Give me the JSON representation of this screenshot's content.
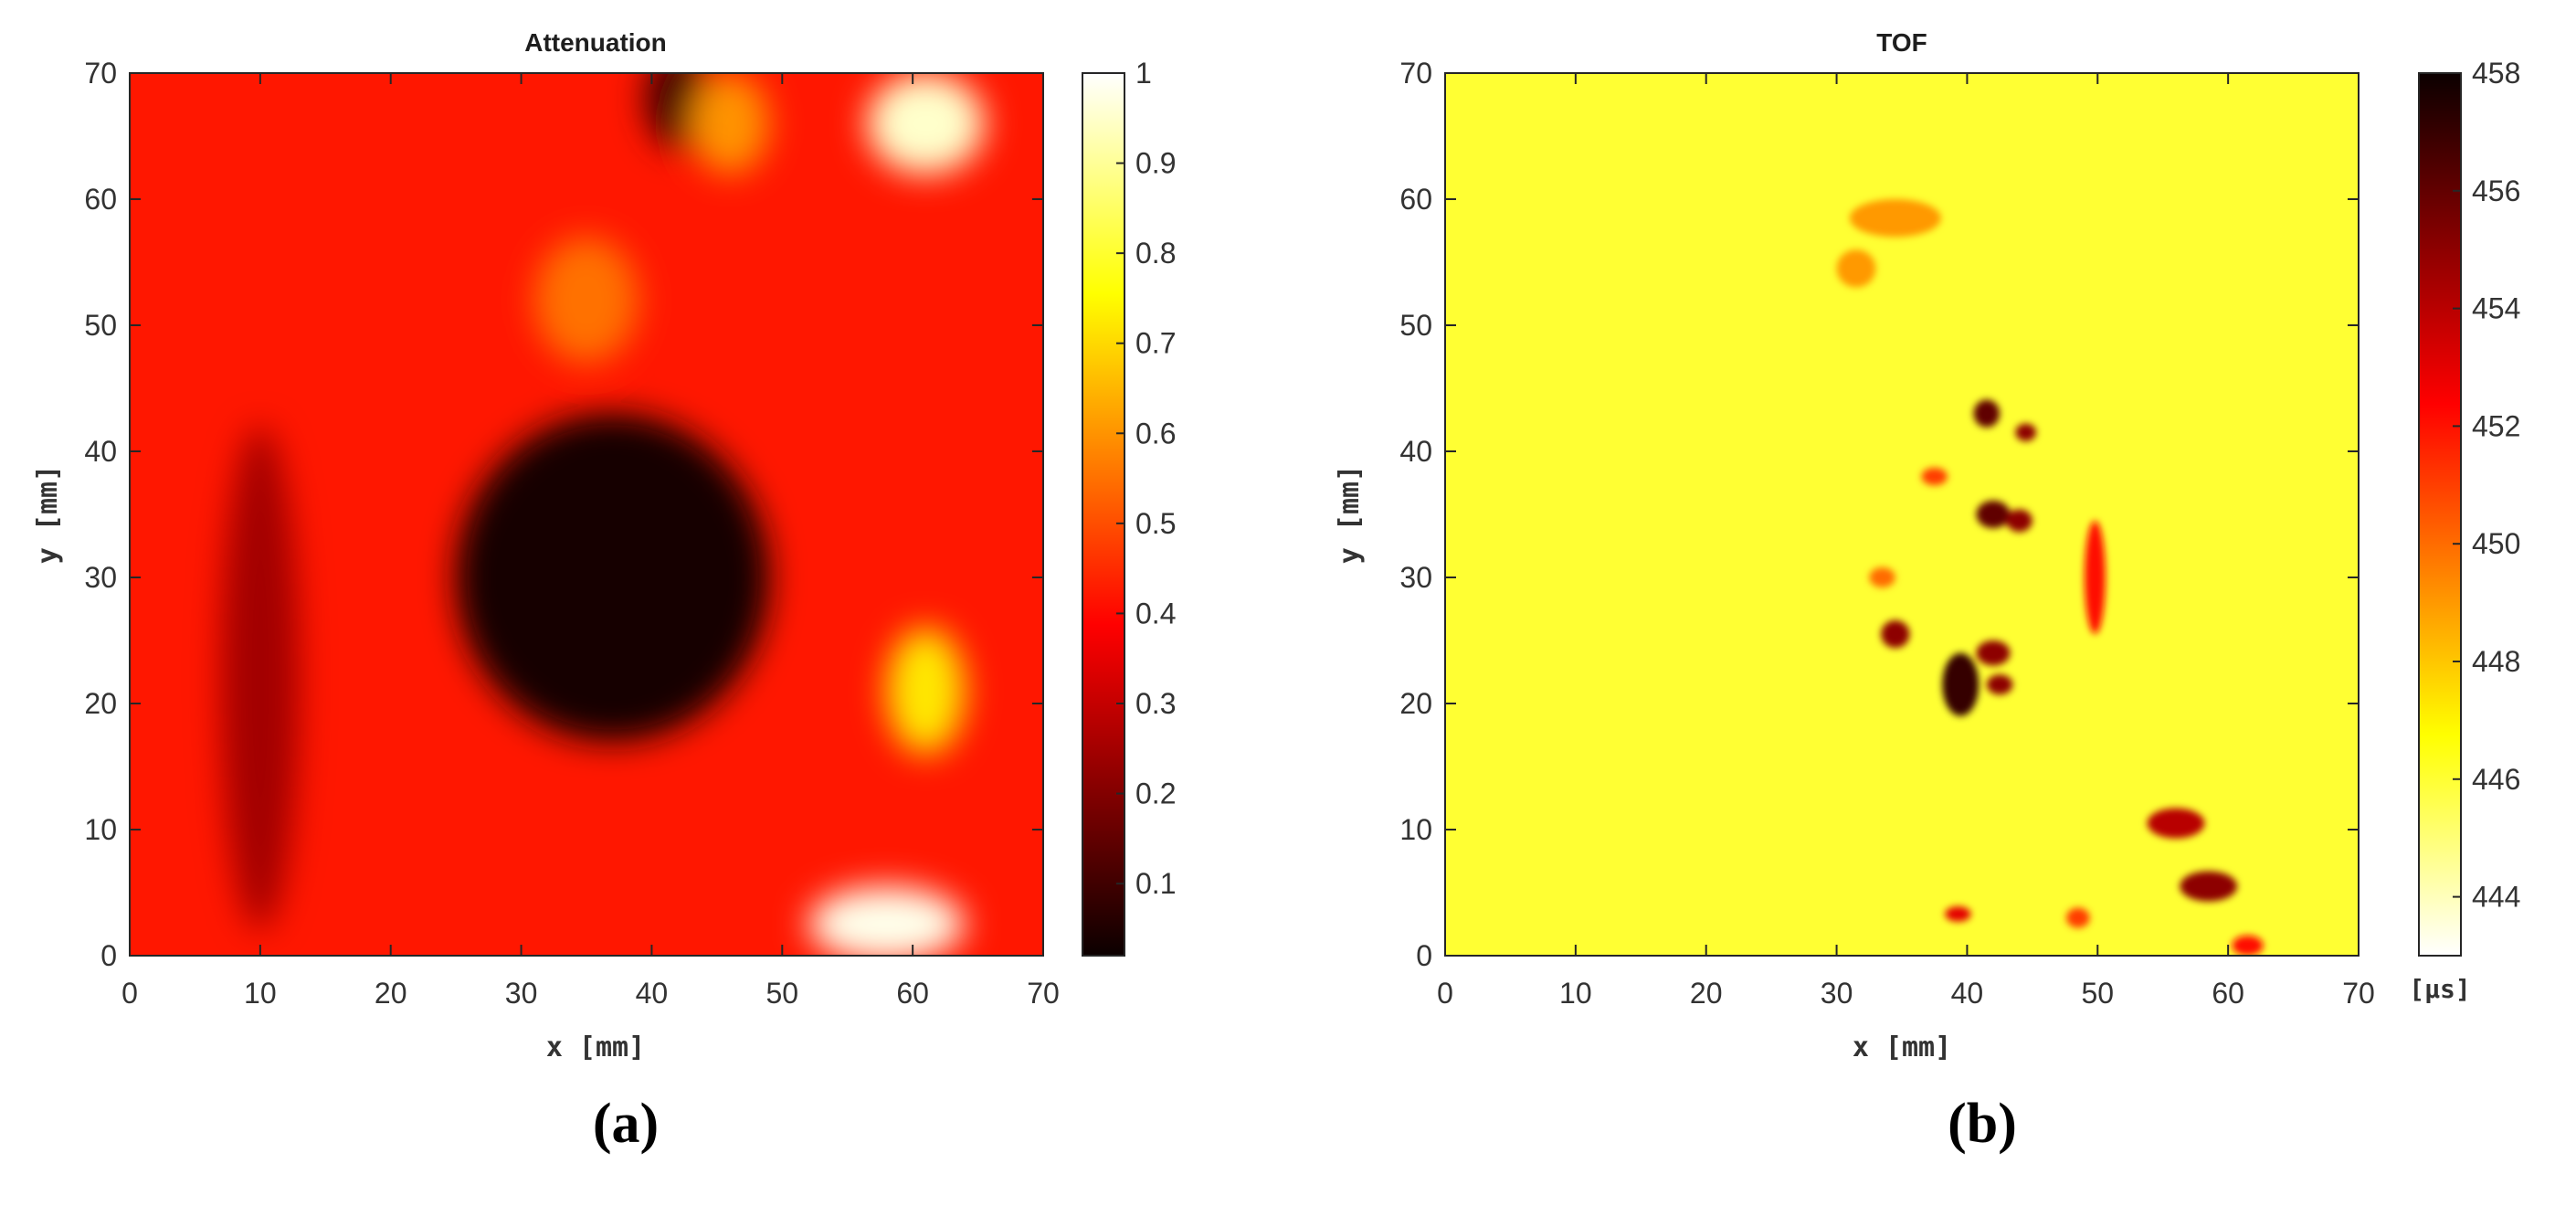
{
  "chart_data": [
    {
      "type": "heatmap",
      "title": "Attenuation",
      "panel_label": "(a)",
      "xlabel": "x [mm]",
      "ylabel": "y [mm]",
      "xlim": [
        0,
        70
      ],
      "ylim": [
        0,
        70
      ],
      "xticks": [
        0,
        10,
        20,
        30,
        40,
        50,
        60,
        70
      ],
      "yticks": [
        0,
        10,
        20,
        30,
        40,
        50,
        60,
        70
      ],
      "colormap": "hot",
      "colorbar": {
        "ticks": [
          0.1,
          0.2,
          0.3,
          0.4,
          0.5,
          0.6,
          0.7,
          0.8,
          0.9,
          1
        ],
        "range": [
          0.02,
          1
        ],
        "unit": ""
      },
      "background_value": 0.42,
      "features": [
        {
          "kind": "low-attenuation defect",
          "x": 37,
          "y": 30,
          "rx": 12,
          "ry": 13,
          "value": 0.04
        },
        {
          "kind": "dark streak",
          "x": 42,
          "y": 68,
          "rx": 2.5,
          "ry": 4,
          "value": 0.1
        },
        {
          "kind": "dark band",
          "x": 10,
          "y": 22,
          "rx": 3,
          "ry": 20,
          "value": 0.25
        },
        {
          "kind": "bright spot",
          "x": 61,
          "y": 66,
          "rx": 4.5,
          "ry": 4,
          "value": 0.95
        },
        {
          "kind": "bright spot",
          "x": 58,
          "y": 2.5,
          "rx": 6,
          "ry": 3,
          "value": 0.98
        },
        {
          "kind": "bright spot",
          "x": 61,
          "y": 21,
          "rx": 3,
          "ry": 5,
          "value": 0.72
        },
        {
          "kind": "bright spot",
          "x": 46,
          "y": 66,
          "rx": 3,
          "ry": 4,
          "value": 0.6
        },
        {
          "kind": "bright spot",
          "x": 35,
          "y": 52,
          "rx": 4,
          "ry": 5,
          "value": 0.55
        }
      ]
    },
    {
      "type": "heatmap",
      "title": "TOF",
      "panel_label": "(b)",
      "xlabel": "x [mm]",
      "ylabel": "y [mm]",
      "xlim": [
        0,
        70
      ],
      "ylim": [
        0,
        70
      ],
      "xticks": [
        0,
        10,
        20,
        30,
        40,
        50,
        60,
        70
      ],
      "yticks": [
        0,
        10,
        20,
        30,
        40,
        50,
        60,
        70
      ],
      "colormap": "hot-reversed",
      "colorbar": {
        "ticks": [
          444,
          446,
          448,
          450,
          452,
          454,
          456,
          458
        ],
        "range": [
          443,
          458
        ],
        "unit": "[μs]"
      },
      "background_value": 446,
      "features": [
        {
          "kind": "defect spot",
          "x": 39.5,
          "y": 21.5,
          "rx": 1.4,
          "ry": 2.5,
          "value": 457
        },
        {
          "kind": "defect spot",
          "x": 42,
          "y": 24,
          "rx": 1.3,
          "ry": 1.0,
          "value": 455
        },
        {
          "kind": "defect spot",
          "x": 42.5,
          "y": 21.5,
          "rx": 1.0,
          "ry": 0.8,
          "value": 455
        },
        {
          "kind": "defect spot",
          "x": 34.5,
          "y": 25.5,
          "rx": 1.1,
          "ry": 1.1,
          "value": 455
        },
        {
          "kind": "defect spot",
          "x": 42,
          "y": 35,
          "rx": 1.3,
          "ry": 1.1,
          "value": 456
        },
        {
          "kind": "defect spot",
          "x": 44,
          "y": 34.5,
          "rx": 1.0,
          "ry": 0.9,
          "value": 455
        },
        {
          "kind": "defect spot",
          "x": 41.5,
          "y": 43,
          "rx": 1.0,
          "ry": 1.1,
          "value": 456
        },
        {
          "kind": "defect spot",
          "x": 44.5,
          "y": 41.5,
          "rx": 0.8,
          "ry": 0.7,
          "value": 455
        },
        {
          "kind": "defect streak",
          "x": 49.8,
          "y": 30,
          "rx": 0.8,
          "ry": 4.5,
          "value": 452
        },
        {
          "kind": "defect spot",
          "x": 37.5,
          "y": 38,
          "rx": 1.0,
          "ry": 0.7,
          "value": 451
        },
        {
          "kind": "defect spot",
          "x": 33.5,
          "y": 30,
          "rx": 1.0,
          "ry": 0.8,
          "value": 450
        },
        {
          "kind": "defect spot",
          "x": 56,
          "y": 10.5,
          "rx": 2.2,
          "ry": 1.2,
          "value": 454
        },
        {
          "kind": "defect spot",
          "x": 58.5,
          "y": 5.5,
          "rx": 2.2,
          "ry": 1.2,
          "value": 455
        },
        {
          "kind": "defect spot",
          "x": 61.5,
          "y": 0.8,
          "rx": 1.2,
          "ry": 0.8,
          "value": 452
        },
        {
          "kind": "defect spot",
          "x": 39.3,
          "y": 3.3,
          "rx": 1.0,
          "ry": 0.6,
          "value": 453
        },
        {
          "kind": "defect spot",
          "x": 48.5,
          "y": 3.0,
          "rx": 0.9,
          "ry": 0.8,
          "value": 451
        },
        {
          "kind": "defect spot",
          "x": 34.5,
          "y": 58.5,
          "rx": 3.5,
          "ry": 1.5,
          "value": 449
        },
        {
          "kind": "defect spot",
          "x": 31.5,
          "y": 54.5,
          "rx": 1.5,
          "ry": 1.5,
          "value": 449
        }
      ]
    }
  ]
}
